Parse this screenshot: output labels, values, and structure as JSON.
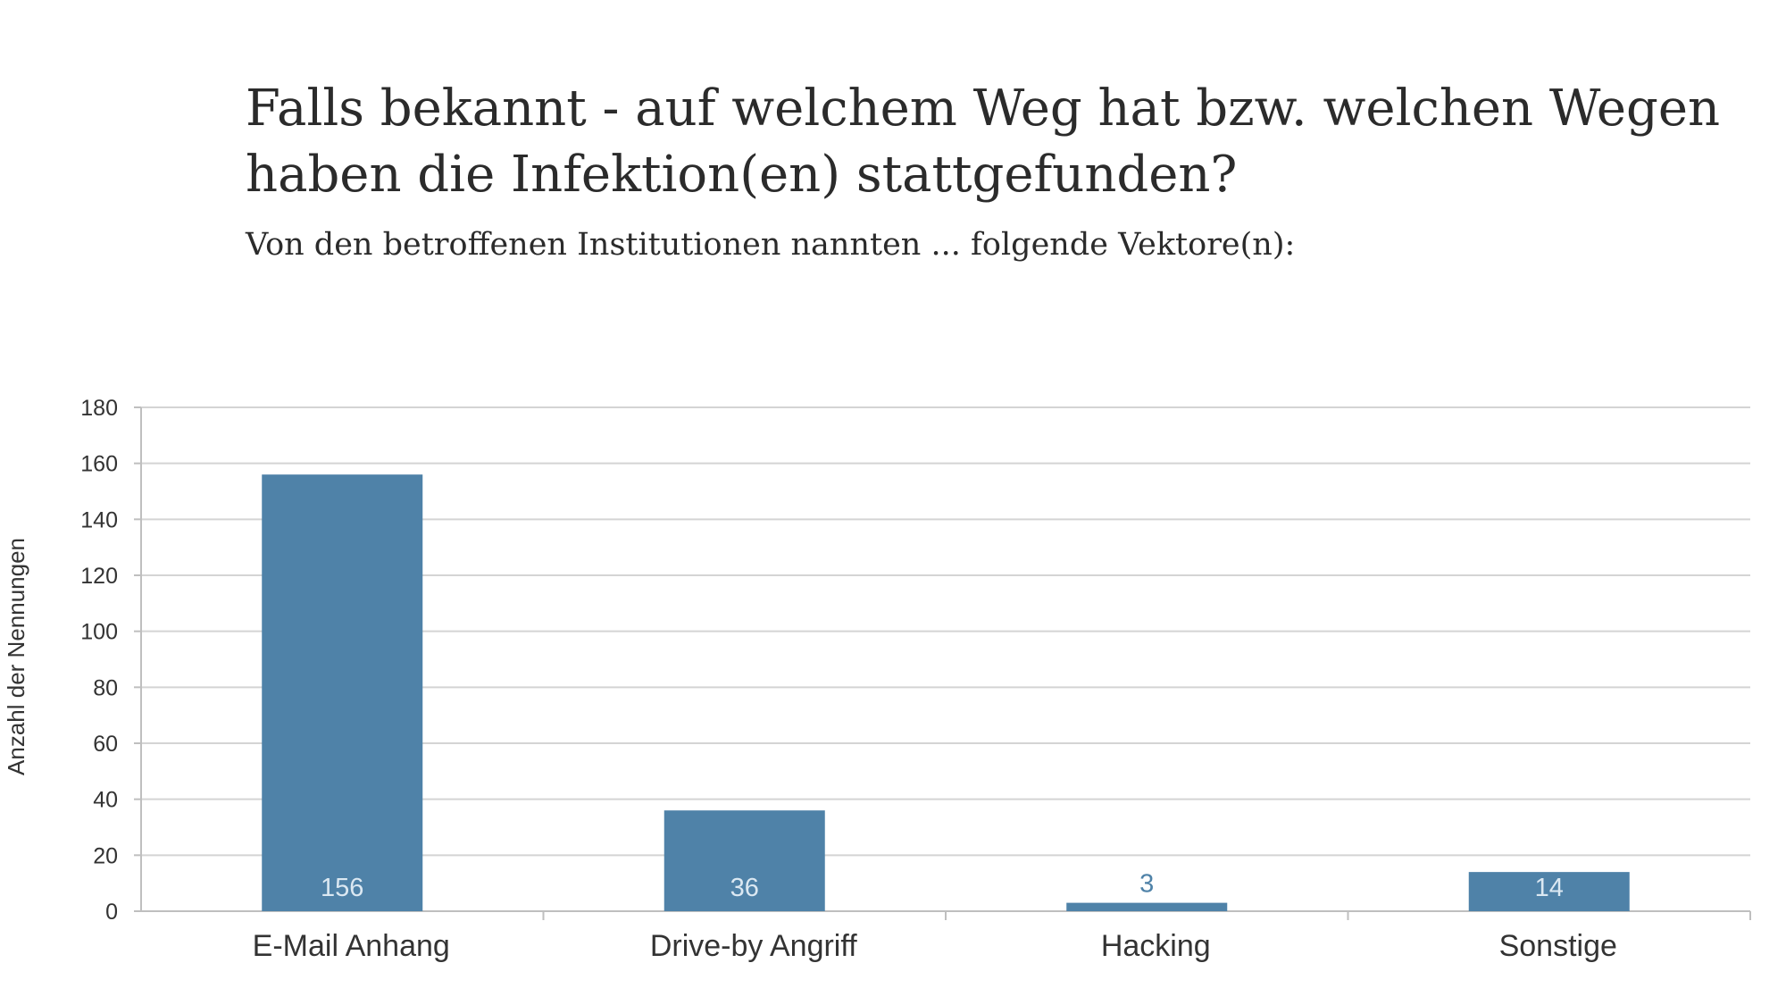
{
  "header": {
    "title_line1": "Falls bekannt - auf welchem Weg hat bzw. welchen Wegen",
    "title_line2": "haben die Infektion(en) stattgefunden?",
    "subtitle": "Von den betroffenen Institutionen nannten ... folgende Vektore(n):"
  },
  "chart_data": {
    "type": "bar",
    "title": "Falls bekannt - auf welchem Weg hat bzw. welchen Wegen haben die Infektion(en) stattgefunden?",
    "subtitle": "Von den betroffenen Institutionen nannten ... folgende Vektore(n):",
    "categories": [
      "E-Mail Anhang",
      "Drive-by Angriff",
      "Hacking",
      "Sonstige"
    ],
    "values": [
      156,
      36,
      3,
      14
    ],
    "data_labels": [
      "156",
      "36",
      "3",
      "14"
    ],
    "xlabel": "",
    "ylabel": "Anzahl der Nennungen",
    "ylim": [
      0,
      180
    ],
    "yticks": [
      0,
      20,
      40,
      60,
      80,
      100,
      120,
      140,
      160,
      180
    ],
    "grid": true,
    "legend": "none",
    "colors": {
      "bar": "#4f82a8",
      "grid": "#d4d4d4",
      "axis": "#bfbfbf",
      "label_inside": "#dbe8f2",
      "label_outside": "#4f82a8"
    }
  }
}
